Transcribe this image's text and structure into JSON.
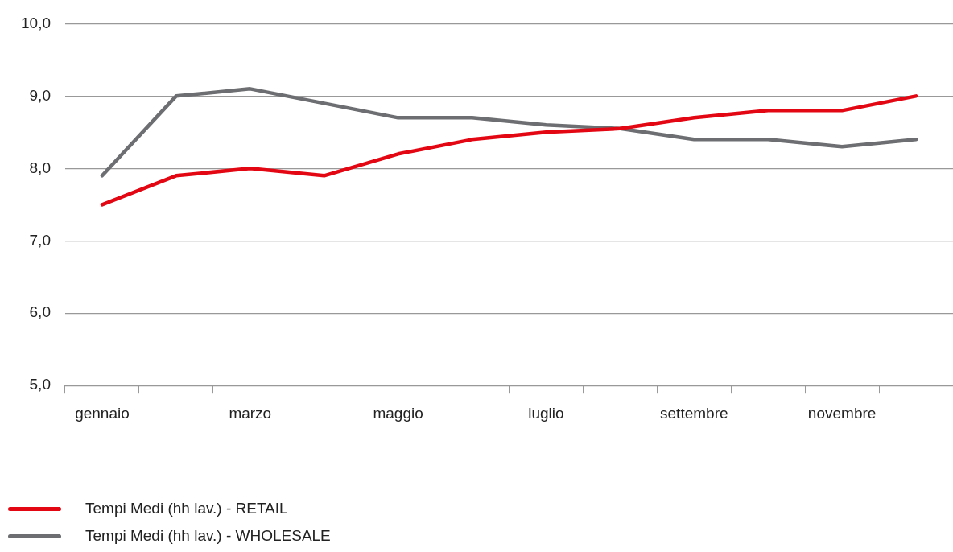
{
  "chart_data": {
    "type": "line",
    "categories": [
      "gennaio",
      null,
      "marzo",
      null,
      "maggio",
      null,
      "luglio",
      null,
      "settembre",
      null,
      "novembre",
      null
    ],
    "series": [
      {
        "name": "Tempi Medi (hh lav.) - RETAIL",
        "color": "#e30613",
        "values": [
          7.5,
          7.9,
          8.0,
          7.9,
          8.2,
          8.4,
          8.5,
          8.55,
          8.7,
          8.8,
          8.8,
          9.0
        ]
      },
      {
        "name": "Tempi Medi (hh lav.) - WHOLESALE",
        "color": "#6d6e71",
        "values": [
          7.9,
          9.0,
          9.1,
          8.9,
          8.7,
          8.7,
          8.6,
          8.55,
          8.4,
          8.4,
          8.3,
          8.4
        ]
      }
    ],
    "ylim": [
      5,
      10
    ],
    "yticks": [
      {
        "value": 5,
        "label": "5,0"
      },
      {
        "value": 6,
        "label": "6,0"
      },
      {
        "value": 7,
        "label": "7,0"
      },
      {
        "value": 8,
        "label": "8,0"
      },
      {
        "value": 9,
        "label": "9,0"
      },
      {
        "value": 10,
        "label": "10,0"
      }
    ],
    "grid": "y",
    "legend": "bottom left",
    "marker": "none",
    "line_style": "solid"
  }
}
